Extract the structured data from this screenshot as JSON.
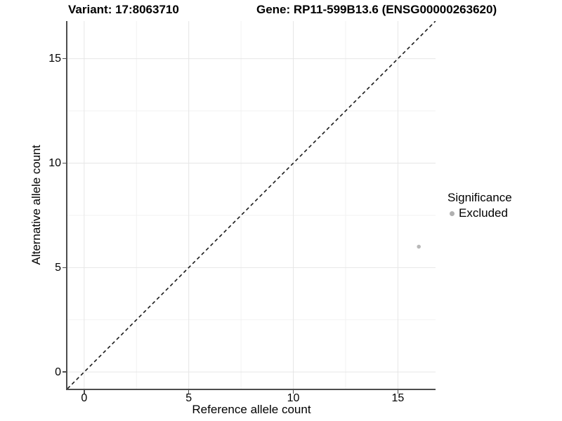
{
  "window": {
    "background": "#ffffff"
  },
  "chart_data": {
    "type": "scatter",
    "titles": {
      "left": "Variant: 17:8063710",
      "right": "Gene: RP11-599B13.6 (ENSG00000263620)"
    },
    "xlabel": "Reference allele count",
    "ylabel": "Alternative allele count",
    "xlim": [
      -0.8,
      16.8
    ],
    "ylim": [
      -0.8,
      16.8
    ],
    "x_major_ticks": [
      0,
      5,
      10,
      15
    ],
    "y_major_ticks": [
      0,
      5,
      10,
      15
    ],
    "x_minor_ticks": [
      2.5,
      7.5,
      12.5
    ],
    "y_minor_ticks": [
      2.5,
      7.5,
      12.5
    ],
    "grid": {
      "major_color": "#e6e6e6",
      "minor_color": "#f2f2f2",
      "on": true
    },
    "axis_color": "#4d4d4d",
    "identity_line": {
      "from": [
        -0.8,
        -0.8
      ],
      "to": [
        16.8,
        16.8
      ],
      "style": "dashed",
      "color": "#1a1a1a"
    },
    "points": [
      {
        "x": 16,
        "y": 6,
        "significance": "Excluded",
        "color": "#b8b8b8",
        "radius": 2.8
      }
    ],
    "legend": {
      "title": "Significance",
      "position": "right",
      "items": [
        {
          "label": "Excluded",
          "color": "#b0b0b0"
        }
      ]
    }
  }
}
